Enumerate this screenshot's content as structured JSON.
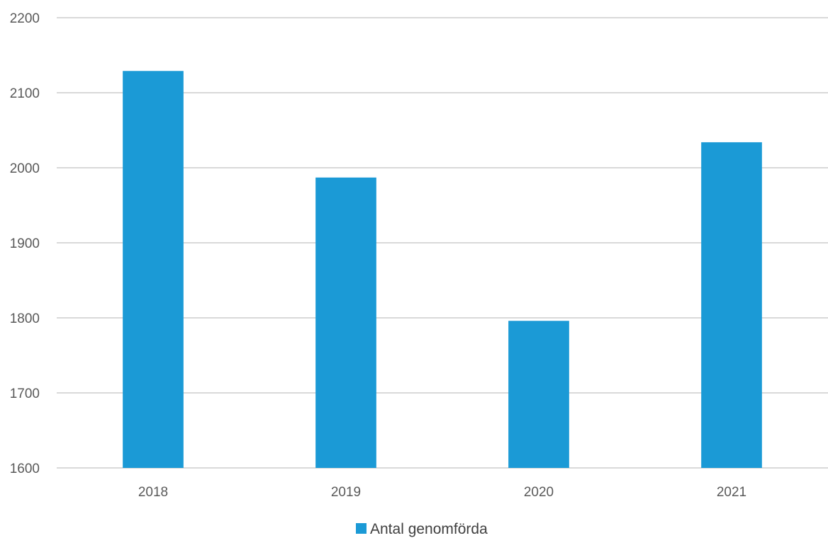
{
  "colors": {
    "bar": "#1b9ad6",
    "grid": "#d9d9d9",
    "axis": "#d9d9d9",
    "text": "#595959"
  },
  "chart_data": {
    "type": "bar",
    "categories": [
      "2018",
      "2019",
      "2020",
      "2021"
    ],
    "series": [
      {
        "name": "Antal genomförda",
        "values": [
          2129,
          1987,
          1796,
          2034
        ]
      }
    ],
    "title": "",
    "xlabel": "",
    "ylabel": "",
    "ylim": [
      1600,
      2200
    ],
    "yticks": [
      "1600",
      "1700",
      "1800",
      "1900",
      "2000",
      "2100",
      "2200"
    ],
    "grid": true,
    "legend": "bottom-center"
  }
}
